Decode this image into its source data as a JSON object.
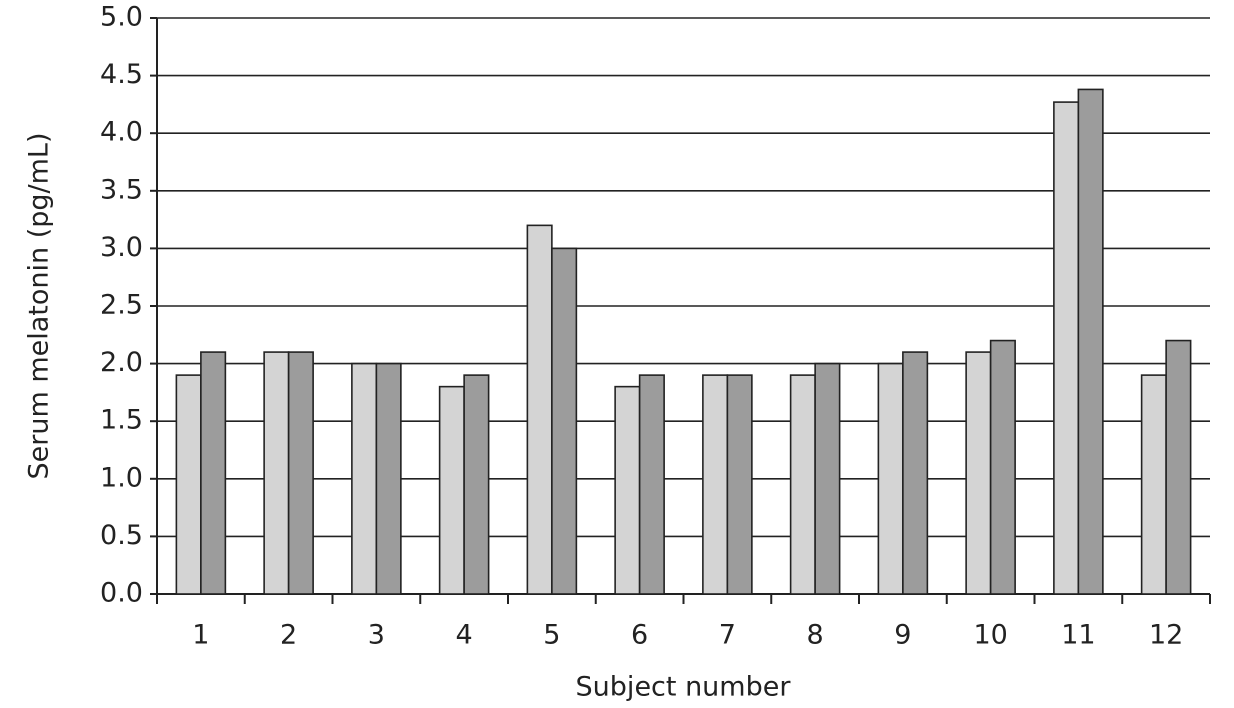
{
  "chart_data": {
    "type": "bar",
    "y_label": "Serum melatonin (pg/mL)",
    "x_label": "Subject number",
    "categories": [
      "1",
      "2",
      "3",
      "4",
      "5",
      "6",
      "7",
      "8",
      "9",
      "10",
      "11",
      "12"
    ],
    "series": [
      {
        "color": "#d4d4d4",
        "values": [
          1.9,
          2.1,
          2.0,
          1.8,
          3.2,
          1.8,
          1.9,
          1.9,
          2.0,
          2.1,
          4.27,
          1.9
        ]
      },
      {
        "color": "#9c9c9c",
        "values": [
          2.1,
          2.1,
          2.0,
          1.9,
          3.0,
          1.9,
          1.9,
          2.0,
          2.1,
          2.2,
          4.38,
          2.2
        ]
      }
    ],
    "ylim": [
      0,
      5
    ],
    "yticks": [
      {
        "value": 0,
        "label": "0.0"
      },
      0.5,
      {
        "value": 1,
        "label": "1.0"
      },
      1.5,
      {
        "value": 2,
        "label": "2.0"
      },
      2.5,
      {
        "value": 3,
        "label": "3.0"
      },
      3.5,
      {
        "value": 4,
        "label": "4.0"
      },
      4.5,
      {
        "value": 5,
        "label": "5.0"
      }
    ],
    "grid": true
  }
}
